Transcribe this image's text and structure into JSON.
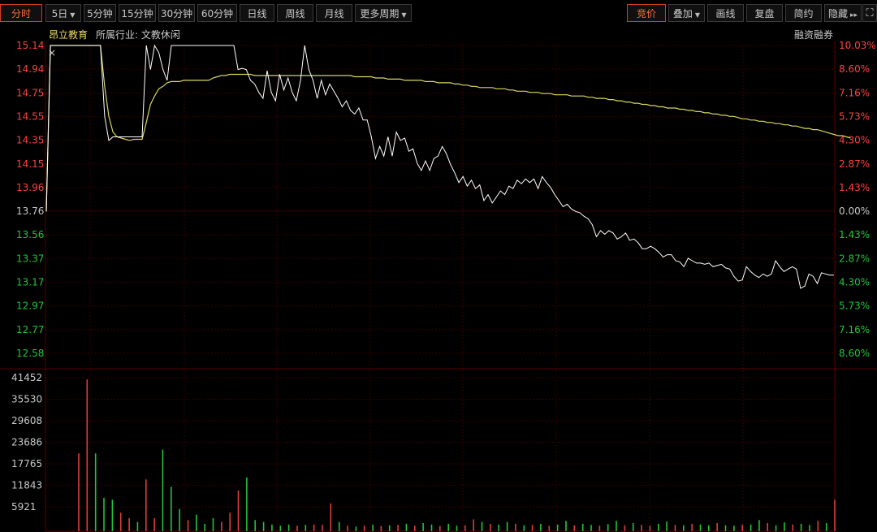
{
  "toolbar": {
    "left": [
      {
        "label": "分时",
        "active": true,
        "dropdown": false
      },
      {
        "label": "5日",
        "active": false,
        "dropdown": true
      },
      {
        "label": "5分钟",
        "active": false,
        "dropdown": false
      },
      {
        "label": "15分钟",
        "active": false,
        "dropdown": false
      },
      {
        "label": "30分钟",
        "active": false,
        "dropdown": false
      },
      {
        "label": "60分钟",
        "active": false,
        "dropdown": false
      },
      {
        "label": "日线",
        "active": false,
        "dropdown": false
      },
      {
        "label": "周线",
        "active": false,
        "dropdown": false
      },
      {
        "label": "月线",
        "active": false,
        "dropdown": false
      },
      {
        "label": "更多周期",
        "active": false,
        "dropdown": true
      }
    ],
    "right": [
      {
        "label": "竞价",
        "active": true,
        "dropdown": false
      },
      {
        "label": "叠加",
        "active": false,
        "dropdown": true
      },
      {
        "label": "画线",
        "active": false,
        "dropdown": false
      },
      {
        "label": "复盘",
        "active": false,
        "dropdown": false
      },
      {
        "label": "简约",
        "active": false,
        "dropdown": false
      },
      {
        "label": "隐藏",
        "active": false,
        "dropdown": false
      }
    ],
    "hide_arrows": "▸▸",
    "fullscreen_icon": "⛶"
  },
  "header": {
    "stock_name": "昂立教育",
    "industry": "所属行业: 文教休闲",
    "margin_label": "融资融券",
    "close_mark": "×"
  },
  "colors": {
    "up": "#ff4040",
    "down": "#22c43a",
    "price_line": "#ffffff",
    "avg_line": "#d8d860",
    "grid": "#3a0000",
    "vol_up": "#e03c3c",
    "vol_down": "#22c43a",
    "neutral": "#c8c8c8"
  },
  "chart_data": {
    "type": "line",
    "prev_close": 13.76,
    "price_ticks": [
      "15.14",
      "14.94",
      "14.75",
      "14.55",
      "14.35",
      "14.15",
      "13.96",
      "13.76",
      "13.56",
      "13.37",
      "13.17",
      "12.97",
      "12.77",
      "12.58"
    ],
    "pct_ticks": [
      "10.03%",
      "8.60%",
      "7.16%",
      "5.73%",
      "4.30%",
      "2.87%",
      "1.43%",
      "0.00%",
      "1.43%",
      "2.87%",
      "4.30%",
      "5.73%",
      "7.16%",
      "8.60%"
    ],
    "ylim": [
      12.58,
      15.14
    ],
    "volume_ticks": [
      "41452",
      "35530",
      "29608",
      "23686",
      "17765",
      "11843",
      "5921"
    ],
    "volume_max": 41452,
    "series": [
      {
        "values": [
          13.76,
          15.14,
          15.14,
          15.14,
          15.14,
          15.14,
          15.14,
          15.14,
          15.14,
          15.14,
          15.14,
          15.14,
          15.14,
          15.14,
          14.55,
          14.35,
          14.38,
          14.38,
          14.38,
          14.38,
          14.38,
          14.38,
          14.38,
          14.38,
          15.14,
          14.94,
          15.14,
          15.08,
          14.94,
          14.85,
          15.14,
          15.14,
          15.14,
          15.14,
          15.14,
          15.14,
          15.14,
          15.14,
          15.14,
          15.14,
          15.14,
          15.14,
          15.14,
          15.14,
          15.14,
          15.14,
          14.94,
          14.95,
          14.94,
          14.85,
          14.82,
          14.75,
          14.7,
          14.93,
          14.75,
          14.68,
          14.9,
          14.77,
          14.87,
          14.75,
          14.68,
          14.85,
          15.14,
          14.94,
          14.85,
          14.7,
          14.85,
          14.73,
          14.82,
          14.76,
          14.7,
          14.63,
          14.68,
          14.6,
          14.57,
          14.62,
          14.52,
          14.52,
          14.38,
          14.2,
          14.3,
          14.22,
          14.38,
          14.22,
          14.42,
          14.35,
          14.37,
          14.26,
          14.28,
          14.16,
          14.1,
          14.18,
          14.1,
          14.2,
          14.22,
          14.3,
          14.24,
          14.15,
          14.08,
          14.0,
          14.05,
          13.97,
          14.02,
          13.95,
          13.98,
          13.85,
          13.9,
          13.83,
          13.88,
          13.93,
          13.9,
          13.97,
          13.95,
          14.02,
          13.99,
          14.03,
          14.0,
          14.03,
          13.95,
          14.05,
          14.0,
          13.96,
          13.9,
          13.85,
          13.8,
          13.82,
          13.78,
          13.76,
          13.75,
          13.72,
          13.7,
          13.65,
          13.55,
          13.6,
          13.57,
          13.6,
          13.58,
          13.53,
          13.55,
          13.58,
          13.52,
          13.53,
          13.5,
          13.45,
          13.45,
          13.47,
          13.45,
          13.42,
          13.38,
          13.4,
          13.4,
          13.35,
          13.34,
          13.3,
          13.37,
          13.35,
          13.33,
          13.33,
          13.32,
          13.33,
          13.3,
          13.31,
          13.32,
          13.29,
          13.28,
          13.22,
          13.18,
          13.19,
          13.3,
          13.26,
          13.23,
          13.21,
          13.24,
          13.22,
          13.24,
          13.35,
          13.3,
          13.26,
          13.28,
          13.3,
          13.28,
          13.12,
          13.14,
          13.24,
          13.22,
          13.16,
          13.25,
          13.24,
          13.23,
          13.23
        ]
      },
      {
        "values": [
          13.76,
          15.14,
          15.14,
          15.14,
          15.14,
          15.14,
          15.14,
          15.14,
          15.14,
          15.14,
          15.14,
          15.14,
          15.14,
          15.14,
          14.8,
          14.55,
          14.42,
          14.38,
          14.37,
          14.36,
          14.35,
          14.36,
          14.36,
          14.36,
          14.5,
          14.65,
          14.72,
          14.78,
          14.8,
          14.83,
          14.84,
          14.84,
          14.84,
          14.85,
          14.85,
          14.85,
          14.85,
          14.85,
          14.85,
          14.85,
          14.87,
          14.88,
          14.89,
          14.89,
          14.9,
          14.9,
          14.9,
          14.9,
          14.9,
          14.9,
          14.89,
          14.89,
          14.89,
          14.89,
          14.89,
          14.89,
          14.89,
          14.89,
          14.89,
          14.89,
          14.89,
          14.89,
          14.89,
          14.89,
          14.89,
          14.89,
          14.89,
          14.89,
          14.89,
          14.89,
          14.89,
          14.89,
          14.89,
          14.89,
          14.88,
          14.88,
          14.88,
          14.88,
          14.88,
          14.87,
          14.87,
          14.87,
          14.86,
          14.86,
          14.86,
          14.86,
          14.85,
          14.85,
          14.85,
          14.85,
          14.85,
          14.84,
          14.84,
          14.84,
          14.83,
          14.83,
          14.83,
          14.83,
          14.82,
          14.82,
          14.81,
          14.81,
          14.8,
          14.8,
          14.79,
          14.79,
          14.79,
          14.79,
          14.78,
          14.78,
          14.78,
          14.77,
          14.77,
          14.76,
          14.76,
          14.76,
          14.75,
          14.75,
          14.75,
          14.74,
          14.74,
          14.74,
          14.73,
          14.73,
          14.73,
          14.73,
          14.72,
          14.72,
          14.72,
          14.72,
          14.71,
          14.71,
          14.7,
          14.7,
          14.7,
          14.69,
          14.69,
          14.68,
          14.68,
          14.67,
          14.67,
          14.66,
          14.66,
          14.65,
          14.65,
          14.64,
          14.64,
          14.63,
          14.63,
          14.62,
          14.62,
          14.62,
          14.61,
          14.61,
          14.6,
          14.6,
          14.59,
          14.59,
          14.58,
          14.58,
          14.57,
          14.57,
          14.56,
          14.56,
          14.55,
          14.55,
          14.54,
          14.53,
          14.53,
          14.52,
          14.52,
          14.51,
          14.51,
          14.5,
          14.5,
          14.49,
          14.49,
          14.48,
          14.48,
          14.47,
          14.47,
          14.46,
          14.45,
          14.45,
          14.44,
          14.44,
          14.43,
          14.42,
          14.41,
          14.4,
          14.39,
          14.39,
          14.38,
          14.37
        ]
      }
    ],
    "volume_bars": [
      {
        "v": 21000,
        "c": "up"
      },
      {
        "v": 41000,
        "c": "up"
      },
      {
        "v": 21000,
        "c": "down"
      },
      {
        "v": 9000,
        "c": "down"
      },
      {
        "v": 8500,
        "c": "down"
      },
      {
        "v": 5000,
        "c": "up"
      },
      {
        "v": 3500,
        "c": "up"
      },
      {
        "v": 2500,
        "c": "down"
      },
      {
        "v": 14000,
        "c": "up"
      },
      {
        "v": 3500,
        "c": "up"
      },
      {
        "v": 22000,
        "c": "down"
      },
      {
        "v": 12000,
        "c": "down"
      },
      {
        "v": 6000,
        "c": "down"
      },
      {
        "v": 3000,
        "c": "up"
      },
      {
        "v": 4500,
        "c": "down"
      },
      {
        "v": 2000,
        "c": "down"
      },
      {
        "v": 3500,
        "c": "down"
      },
      {
        "v": 2500,
        "c": "up"
      },
      {
        "v": 5000,
        "c": "up"
      },
      {
        "v": 11000,
        "c": "up"
      },
      {
        "v": 14500,
        "c": "down"
      },
      {
        "v": 3000,
        "c": "down"
      },
      {
        "v": 2500,
        "c": "down"
      },
      {
        "v": 1800,
        "c": "down"
      },
      {
        "v": 1500,
        "c": "down"
      },
      {
        "v": 1800,
        "c": "down"
      },
      {
        "v": 1500,
        "c": "up"
      },
      {
        "v": 1700,
        "c": "down"
      },
      {
        "v": 1800,
        "c": "up"
      },
      {
        "v": 1700,
        "c": "up"
      },
      {
        "v": 7500,
        "c": "up"
      },
      {
        "v": 2500,
        "c": "down"
      },
      {
        "v": 1500,
        "c": "up"
      },
      {
        "v": 1200,
        "c": "down"
      },
      {
        "v": 1500,
        "c": "up"
      },
      {
        "v": 1800,
        "c": "down"
      },
      {
        "v": 1400,
        "c": "up"
      },
      {
        "v": 1600,
        "c": "down"
      },
      {
        "v": 1700,
        "c": "up"
      },
      {
        "v": 2000,
        "c": "down"
      },
      {
        "v": 1500,
        "c": "up"
      },
      {
        "v": 2200,
        "c": "down"
      },
      {
        "v": 1800,
        "c": "down"
      },
      {
        "v": 1400,
        "c": "up"
      },
      {
        "v": 2000,
        "c": "down"
      },
      {
        "v": 1500,
        "c": "down"
      },
      {
        "v": 1600,
        "c": "up"
      },
      {
        "v": 3200,
        "c": "up"
      },
      {
        "v": 2500,
        "c": "down"
      },
      {
        "v": 2000,
        "c": "up"
      },
      {
        "v": 1800,
        "c": "down"
      },
      {
        "v": 2500,
        "c": "down"
      },
      {
        "v": 2000,
        "c": "up"
      },
      {
        "v": 1600,
        "c": "down"
      },
      {
        "v": 1700,
        "c": "up"
      },
      {
        "v": 2000,
        "c": "down"
      },
      {
        "v": 1500,
        "c": "up"
      },
      {
        "v": 1800,
        "c": "down"
      },
      {
        "v": 2800,
        "c": "down"
      },
      {
        "v": 1600,
        "c": "up"
      },
      {
        "v": 2000,
        "c": "down"
      },
      {
        "v": 1700,
        "c": "down"
      },
      {
        "v": 1500,
        "c": "up"
      },
      {
        "v": 1900,
        "c": "down"
      },
      {
        "v": 2800,
        "c": "down"
      },
      {
        "v": 1600,
        "c": "up"
      },
      {
        "v": 2200,
        "c": "down"
      },
      {
        "v": 1700,
        "c": "up"
      },
      {
        "v": 1500,
        "c": "up"
      },
      {
        "v": 2000,
        "c": "down"
      },
      {
        "v": 2600,
        "c": "down"
      },
      {
        "v": 1700,
        "c": "up"
      },
      {
        "v": 1600,
        "c": "down"
      },
      {
        "v": 2000,
        "c": "up"
      },
      {
        "v": 1800,
        "c": "down"
      },
      {
        "v": 1600,
        "c": "down"
      },
      {
        "v": 2200,
        "c": "up"
      },
      {
        "v": 1600,
        "c": "down"
      },
      {
        "v": 1500,
        "c": "down"
      },
      {
        "v": 1700,
        "c": "up"
      },
      {
        "v": 1800,
        "c": "down"
      },
      {
        "v": 3000,
        "c": "down"
      },
      {
        "v": 2200,
        "c": "up"
      },
      {
        "v": 1600,
        "c": "down"
      },
      {
        "v": 2400,
        "c": "down"
      },
      {
        "v": 1800,
        "c": "up"
      },
      {
        "v": 2000,
        "c": "down"
      },
      {
        "v": 1700,
        "c": "down"
      },
      {
        "v": 2800,
        "c": "up"
      },
      {
        "v": 2200,
        "c": "down"
      },
      {
        "v": 8500,
        "c": "up"
      }
    ]
  }
}
